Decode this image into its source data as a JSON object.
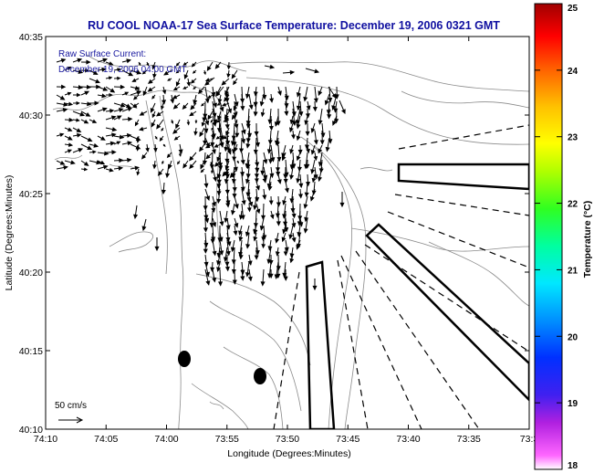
{
  "title": "RU COOL  NOAA-17  Sea Surface Temperature:  December 19, 2006 0321 GMT",
  "legend_text": {
    "line1": "Raw Surface Current:",
    "line2": "December 19, 2006 04:00 GMT"
  },
  "scale_label": "50 cm/s",
  "axes": {
    "x_label": "Longitude (Degrees:Minutes)",
    "y_label": "Latitude (Degrees:Minutes)",
    "x_ticks": [
      "74:10",
      "74:05",
      "74:00",
      "73:55",
      "73:50",
      "73:45",
      "73:40",
      "73:35",
      "73:3"
    ],
    "y_ticks": [
      "40:35",
      "40:30",
      "40:25",
      "40:20",
      "40:15",
      "40:10"
    ]
  },
  "colorbar": {
    "label": "Temperature (°C)",
    "ticks": [
      "25",
      "24",
      "23",
      "22",
      "21",
      "20",
      "19",
      "18"
    ],
    "min": 18,
    "max": 25
  },
  "colors": {
    "title": "#1010a0",
    "annotation": "#1a1aa0",
    "contour": "#8a8a8a",
    "vector": "#000000"
  }
}
